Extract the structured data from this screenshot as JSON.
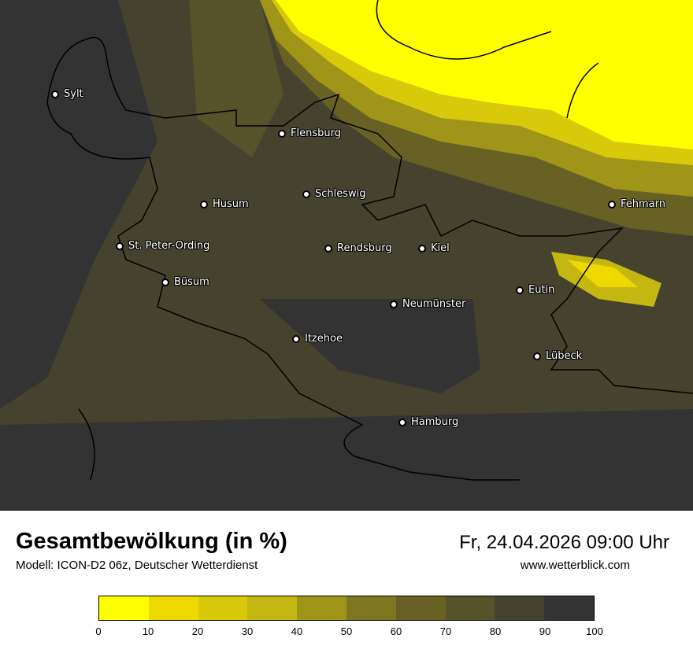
{
  "title": "Gesamtbewölkung (in %)",
  "subtitle": "Modell: ICON-D2 06z, Deutscher Wetterdienst",
  "datetime": "Fr, 24.04.2026 09:00 Uhr",
  "website": "www.wetterblick.com",
  "cities": [
    {
      "name": "Sylt"
    },
    {
      "name": "Flensburg"
    },
    {
      "name": "Schleswig"
    },
    {
      "name": "Husum"
    },
    {
      "name": "St. Peter-Ording"
    },
    {
      "name": "Rendsburg"
    },
    {
      "name": "Kiel"
    },
    {
      "name": "Büsum"
    },
    {
      "name": "Eutin"
    },
    {
      "name": "Neumünster"
    },
    {
      "name": "Itzehoe"
    },
    {
      "name": "Lübeck"
    },
    {
      "name": "Hamburg"
    },
    {
      "name": "Fehmarn"
    }
  ],
  "legend": {
    "unit": "%",
    "ticks": [
      "0",
      "10",
      "20",
      "30",
      "40",
      "50",
      "60",
      "70",
      "80",
      "90",
      "100"
    ],
    "colors": [
      "#ffff00",
      "#eed800",
      "#d9c90b",
      "#c4b712",
      "#a19519",
      "#7f7622",
      "#686124",
      "#56522a",
      "#45422e",
      "#333333"
    ]
  }
}
